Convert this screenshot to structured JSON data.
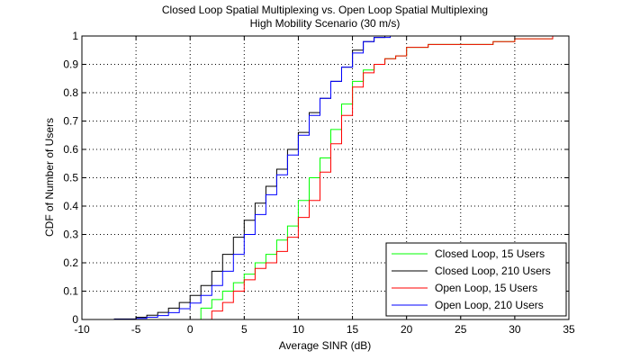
{
  "chart_data": {
    "type": "line",
    "title": "Closed Loop Spatial Multiplexing vs. Open Loop Spatial Multiplexing",
    "subtitle": "High Mobility Scenario (30 m/s)",
    "xlabel": "Average SINR (dB)",
    "ylabel": "CDF of Number of Users",
    "xlim": [
      -10,
      35
    ],
    "ylim": [
      0,
      1
    ],
    "xticks": [
      -10,
      -5,
      0,
      5,
      10,
      15,
      20,
      25,
      30,
      35
    ],
    "yticks": [
      0,
      0.1,
      0.2,
      0.3,
      0.4,
      0.5,
      0.6,
      0.7,
      0.8,
      0.9,
      1
    ],
    "grid": true,
    "legend_position": "bottom-right",
    "series": [
      {
        "name": "Closed Loop, 15 Users",
        "color": "#00ff00",
        "x": [
          0,
          1,
          2,
          3,
          4,
          5,
          6,
          7,
          8,
          9,
          10,
          11,
          12,
          13,
          14,
          15,
          16,
          17,
          18,
          19,
          20,
          22,
          25,
          28,
          30,
          32,
          33.5
        ],
        "y": [
          0,
          0.04,
          0.07,
          0.1,
          0.13,
          0.16,
          0.2,
          0.23,
          0.28,
          0.33,
          0.42,
          0.5,
          0.57,
          0.67,
          0.76,
          0.84,
          0.88,
          0.9,
          0.92,
          0.93,
          0.96,
          0.97,
          0.97,
          0.98,
          0.99,
          0.99,
          1
        ]
      },
      {
        "name": "Closed Loop, 210 Users",
        "color": "#000000",
        "x": [
          -9,
          -7,
          -5,
          -4,
          -3,
          -2,
          -1,
          0,
          1,
          2,
          3,
          4,
          5,
          6,
          7,
          8,
          9,
          10,
          11,
          12,
          13,
          14,
          15,
          16,
          17,
          18
        ],
        "y": [
          0,
          0.002,
          0.008,
          0.015,
          0.025,
          0.04,
          0.06,
          0.085,
          0.12,
          0.17,
          0.23,
          0.29,
          0.35,
          0.41,
          0.47,
          0.53,
          0.6,
          0.66,
          0.73,
          0.78,
          0.84,
          0.89,
          0.95,
          0.98,
          0.995,
          1
        ]
      },
      {
        "name": "Open Loop, 15 Users",
        "color": "#ff0000",
        "x": [
          1.5,
          2,
          3,
          4,
          5,
          6,
          7,
          8,
          9,
          10,
          11,
          12,
          13,
          14,
          15,
          16,
          17,
          18,
          19,
          20,
          22,
          25,
          28,
          30,
          32,
          33.5
        ],
        "y": [
          0,
          0.03,
          0.06,
          0.1,
          0.14,
          0.18,
          0.2,
          0.24,
          0.29,
          0.36,
          0.42,
          0.52,
          0.62,
          0.72,
          0.82,
          0.87,
          0.9,
          0.92,
          0.93,
          0.96,
          0.97,
          0.97,
          0.98,
          0.99,
          0.99,
          1
        ]
      },
      {
        "name": "Open Loop, 210 Users",
        "color": "#0000ff",
        "x": [
          -9,
          -7,
          -5,
          -4,
          -3,
          -2,
          -1,
          0,
          1,
          2,
          3,
          4,
          5,
          6,
          7,
          8,
          9,
          10,
          11,
          12,
          13,
          14,
          15,
          16,
          17,
          18.5
        ],
        "y": [
          0,
          0.001,
          0.004,
          0.008,
          0.014,
          0.024,
          0.038,
          0.058,
          0.085,
          0.12,
          0.17,
          0.23,
          0.3,
          0.37,
          0.44,
          0.51,
          0.58,
          0.65,
          0.72,
          0.78,
          0.84,
          0.89,
          0.94,
          0.98,
          0.995,
          1
        ]
      }
    ]
  }
}
